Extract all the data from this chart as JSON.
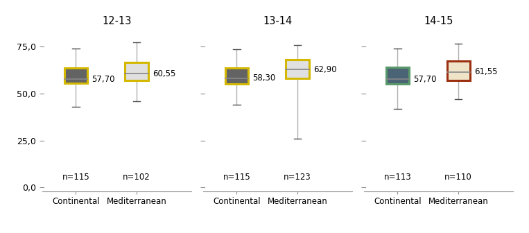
{
  "groups": [
    {
      "title": "12-13",
      "boxes": [
        {
          "label": "Continental",
          "n": "n=115",
          "median_label": "57,70",
          "median": 57.7,
          "q1": 55.5,
          "q3": 63.5,
          "whisker_low": 43.0,
          "whisker_high": 74.0,
          "box_color": "#636363",
          "border_color": "#d4b800",
          "border_width": 2.2,
          "median_line_color": "#888888"
        },
        {
          "label": "Mediterranean",
          "n": "n=102",
          "median_label": "60,55",
          "median": 60.55,
          "q1": 57.0,
          "q3": 66.5,
          "whisker_low": 46.0,
          "whisker_high": 77.5,
          "box_color": "#e0e0e0",
          "border_color": "#d4b800",
          "border_width": 2.2,
          "median_line_color": "#888888"
        }
      ]
    },
    {
      "title": "13-14",
      "boxes": [
        {
          "label": "Continental",
          "n": "n=115",
          "median_label": "58,30",
          "median": 58.3,
          "q1": 55.0,
          "q3": 63.5,
          "whisker_low": 44.0,
          "whisker_high": 73.5,
          "box_color": "#636363",
          "border_color": "#d4b800",
          "border_width": 2.2,
          "median_line_color": "#888888"
        },
        {
          "label": "Mediterranean",
          "n": "n=123",
          "median_label": "62,90",
          "median": 62.9,
          "q1": 58.0,
          "q3": 68.0,
          "whisker_low": 26.0,
          "whisker_high": 76.0,
          "box_color": "#e0e0e0",
          "border_color": "#d4b800",
          "border_width": 2.2,
          "median_line_color": "#888888"
        }
      ]
    },
    {
      "title": "14-15",
      "boxes": [
        {
          "label": "Continental",
          "n": "n=113",
          "median_label": "57,70",
          "median": 57.7,
          "q1": 55.0,
          "q3": 64.0,
          "whisker_low": 42.0,
          "whisker_high": 74.0,
          "box_color": "#4a6375",
          "border_color": "#5a9a6a",
          "border_width": 2.2,
          "median_line_color": "#888888"
        },
        {
          "label": "Mediterranean",
          "n": "n=110",
          "median_label": "61,55",
          "median": 61.55,
          "q1": 57.0,
          "q3": 67.5,
          "whisker_low": 47.0,
          "whisker_high": 76.5,
          "box_color": "#f0e4c8",
          "border_color": "#9b2f10",
          "border_width": 2.2,
          "median_line_color": "#888888"
        }
      ]
    }
  ],
  "ylim": [
    -2,
    85
  ],
  "yticks": [
    0.0,
    25.0,
    50.0,
    75.0
  ],
  "yticklabels": [
    "0,0",
    "25,0",
    "50,0",
    "75,0"
  ],
  "whisker_color": "#b0b0b0",
  "whisker_cap_color": "#505050",
  "background_color": "#ffffff",
  "n_fontsize": 8.5,
  "label_fontsize": 8.5,
  "title_fontsize": 10.5,
  "median_label_fontsize": 8.5,
  "box_width": 0.38
}
